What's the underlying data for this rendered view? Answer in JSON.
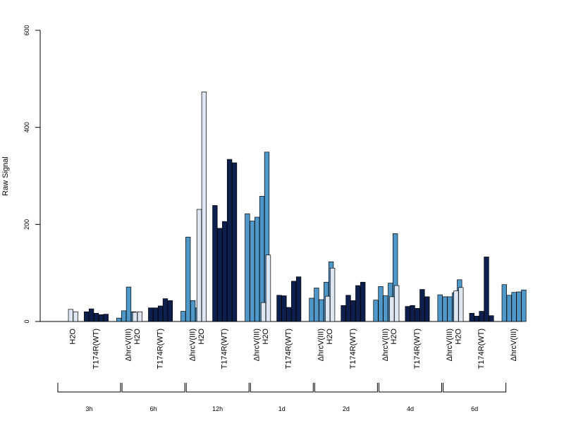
{
  "chart_data": {
    "type": "bar",
    "ylabel": "Raw Signal",
    "ylim": [
      0,
      600
    ],
    "yticks": [
      "0",
      "200",
      "400",
      "600"
    ],
    "conditions": [
      {
        "label": "H2O",
        "color": "#dde6f2"
      },
      {
        "label": "T174R(WT)",
        "color": "#0d1f4d"
      },
      {
        "label": "ΔhrcV(III)",
        "color": "#4f97c8"
      }
    ],
    "groups": [
      {
        "time": "3h",
        "H2O": [
          25,
          20
        ],
        "T174R(WT)": [
          20,
          26,
          17,
          14,
          15
        ],
        "ΔhrcV(III)": [
          7,
          22,
          71,
          20,
          15
        ]
      },
      {
        "time": "6h",
        "H2O": [
          19,
          20
        ],
        "T174R(WT)": [
          28,
          28,
          32,
          47,
          43
        ],
        "ΔhrcV(III)": [
          21,
          174,
          43,
          28,
          36
        ]
      },
      {
        "time": "12h",
        "H2O": [
          231,
          473
        ],
        "T174R(WT)": [
          239,
          192,
          206,
          334,
          327
        ],
        "ΔhrcV(III)": [
          222,
          207,
          215,
          258,
          349
        ]
      },
      {
        "time": "1d",
        "H2O": [
          39,
          137
        ],
        "T174R(WT)": [
          54,
          53,
          29,
          83,
          92
        ],
        "ΔhrcV(III)": [
          48,
          69,
          45,
          81,
          123
        ]
      },
      {
        "time": "2d",
        "H2O": [
          52,
          110
        ],
        "T174R(WT)": [
          33,
          54,
          43,
          74,
          81
        ],
        "ΔhrcV(III)": [
          44,
          72,
          53,
          79,
          181
        ]
      },
      {
        "time": "4d",
        "H2O": [
          51,
          74
        ],
        "T174R(WT)": [
          31,
          33,
          27,
          66,
          51
        ],
        "ΔhrcV(III)": [
          55,
          51,
          51,
          59,
          86
        ]
      },
      {
        "time": "6d",
        "H2O": [
          63,
          70
        ],
        "T174R(WT)": [
          17,
          11,
          21,
          133,
          12
        ],
        "ΔhrcV(III)": [
          76,
          54,
          60,
          61,
          65
        ]
      }
    ]
  }
}
